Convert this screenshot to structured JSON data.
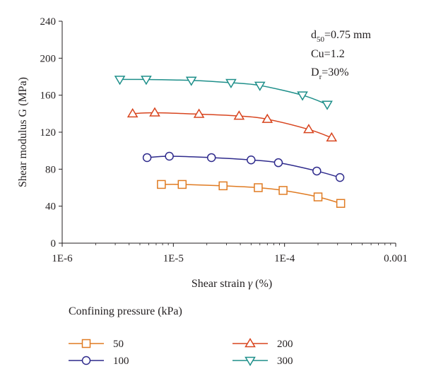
{
  "chart_data": {
    "type": "line",
    "xlabel_main": "Shear strain ",
    "xlabel_symbol": "γ",
    "xlabel_unit": " (%)",
    "ylabel": "Shear modulus G (MPa)",
    "x_scale": "log",
    "xlim": [
      1e-06,
      0.001
    ],
    "ylim": [
      0,
      240
    ],
    "x_ticks": [
      {
        "value": 1e-06,
        "label": "1E-6"
      },
      {
        "value": 1e-05,
        "label": "1E-5"
      },
      {
        "value": 0.0001,
        "label": "1E-4"
      },
      {
        "value": 0.001,
        "label": "0.001"
      }
    ],
    "y_ticks": [
      {
        "value": 0,
        "label": "0"
      },
      {
        "value": 40,
        "label": "40"
      },
      {
        "value": 80,
        "label": "80"
      },
      {
        "value": 120,
        "label": "120"
      },
      {
        "value": 160,
        "label": "160"
      },
      {
        "value": 200,
        "label": "200"
      },
      {
        "value": 240,
        "label": "240"
      }
    ],
    "grid": false,
    "annotations": {
      "d50_main": "d",
      "d50_sub": "50",
      "d50_rest": "=0.75 mm",
      "cu": "Cu=1.2",
      "dr_main": "D",
      "dr_sub": "r",
      "dr_rest": "=30%"
    },
    "legend": {
      "title": "Confining pressure (kPa)",
      "placement": "bottom"
    },
    "series": [
      {
        "name": "50",
        "color": "#e07b22",
        "marker": "square",
        "points": [
          {
            "x": 7.8e-06,
            "y": 63.5
          },
          {
            "x": 1.2e-05,
            "y": 63.5
          },
          {
            "x": 2.8e-05,
            "y": 62
          },
          {
            "x": 5.8e-05,
            "y": 60
          },
          {
            "x": 9.7e-05,
            "y": 57
          },
          {
            "x": 0.0002,
            "y": 50
          },
          {
            "x": 0.00032,
            "y": 43
          }
        ]
      },
      {
        "name": "100",
        "color": "#2e2a8c",
        "marker": "circle",
        "points": [
          {
            "x": 5.8e-06,
            "y": 92.5
          },
          {
            "x": 9.2e-06,
            "y": 94
          },
          {
            "x": 2.2e-05,
            "y": 92.5
          },
          {
            "x": 5e-05,
            "y": 90
          },
          {
            "x": 8.8e-05,
            "y": 87
          },
          {
            "x": 0.000195,
            "y": 78
          },
          {
            "x": 0.000315,
            "y": 71
          }
        ]
      },
      {
        "name": "200",
        "color": "#d8451f",
        "marker": "triangle-up",
        "points": [
          {
            "x": 4.3e-06,
            "y": 140
          },
          {
            "x": 6.8e-06,
            "y": 141
          },
          {
            "x": 1.7e-05,
            "y": 139.5
          },
          {
            "x": 3.9e-05,
            "y": 137.5
          },
          {
            "x": 7e-05,
            "y": 134
          },
          {
            "x": 0.000165,
            "y": 123
          },
          {
            "x": 0.000265,
            "y": 114
          }
        ]
      },
      {
        "name": "300",
        "color": "#1e8f8a",
        "marker": "triangle-down",
        "points": [
          {
            "x": 3.3e-06,
            "y": 177
          },
          {
            "x": 5.7e-06,
            "y": 177
          },
          {
            "x": 1.45e-05,
            "y": 176
          },
          {
            "x": 3.3e-05,
            "y": 173.5
          },
          {
            "x": 6e-05,
            "y": 170.5
          },
          {
            "x": 0.000145,
            "y": 160
          },
          {
            "x": 0.000242,
            "y": 150
          }
        ]
      }
    ]
  }
}
